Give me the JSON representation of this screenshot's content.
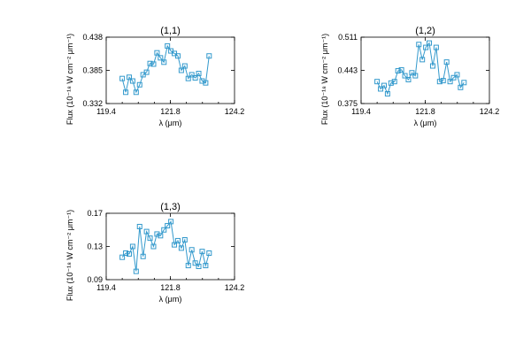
{
  "chart_data": [
    {
      "type": "line",
      "title": "(1,1)",
      "xlabel": "λ (μm)",
      "ylabel": "Flux (10⁻¹⁸ W cm⁻² μm⁻¹)",
      "xlim": [
        119.4,
        124.2
      ],
      "ylim": [
        0.332,
        0.438
      ],
      "xticks": [
        "119.4",
        "121.8",
        "124.2"
      ],
      "yticks": [
        "0.332",
        "0.385",
        "0.438"
      ],
      "color": "#3399cc",
      "x": [
        120.0,
        120.13,
        120.26,
        120.39,
        120.52,
        120.65,
        120.78,
        120.91,
        121.04,
        121.17,
        121.3,
        121.43,
        121.56,
        121.69,
        121.82,
        121.95,
        122.08,
        122.21,
        122.34,
        122.47,
        122.6,
        122.73,
        122.86,
        122.99,
        123.12,
        123.25
      ],
      "y": [
        0.372,
        0.35,
        0.374,
        0.368,
        0.35,
        0.362,
        0.378,
        0.382,
        0.396,
        0.395,
        0.413,
        0.405,
        0.398,
        0.424,
        0.416,
        0.412,
        0.408,
        0.385,
        0.392,
        0.372,
        0.378,
        0.373,
        0.38,
        0.368,
        0.365,
        0.408
      ]
    },
    {
      "type": "line",
      "title": "(1,2)",
      "xlabel": "λ (μm)",
      "ylabel": "Flux (10⁻¹⁸ W cm⁻² μm⁻¹)",
      "xlim": [
        119.4,
        124.2
      ],
      "ylim": [
        0.375,
        0.511
      ],
      "xticks": [
        "119.4",
        "121.8",
        "124.2"
      ],
      "yticks": [
        "0.375",
        "0.443",
        "0.511"
      ],
      "color": "#3399cc",
      "x": [
        120.0,
        120.13,
        120.26,
        120.39,
        120.52,
        120.65,
        120.78,
        120.91,
        121.04,
        121.17,
        121.3,
        121.43,
        121.56,
        121.69,
        121.82,
        121.95,
        122.08,
        122.21,
        122.34,
        122.47,
        122.6,
        122.73,
        122.86,
        122.99,
        123.12,
        123.25
      ],
      "y": [
        0.42,
        0.405,
        0.412,
        0.395,
        0.417,
        0.42,
        0.442,
        0.444,
        0.432,
        0.424,
        0.438,
        0.432,
        0.496,
        0.465,
        0.49,
        0.499,
        0.452,
        0.49,
        0.42,
        0.422,
        0.46,
        0.42,
        0.428,
        0.434,
        0.408,
        0.418
      ]
    },
    {
      "type": "line",
      "title": "(1,3)",
      "xlabel": "λ (μm)",
      "ylabel": "Flux (10⁻¹⁸ W cm⁻² μm⁻¹)",
      "xlim": [
        119.4,
        124.2
      ],
      "ylim": [
        0.09,
        0.17
      ],
      "xticks": [
        "119.4",
        "121.8",
        "124.2"
      ],
      "yticks": [
        "0.09",
        "0.13",
        "0.17"
      ],
      "color": "#3399cc",
      "x": [
        120.0,
        120.13,
        120.26,
        120.39,
        120.52,
        120.65,
        120.78,
        120.91,
        121.04,
        121.17,
        121.3,
        121.43,
        121.56,
        121.69,
        121.82,
        121.95,
        122.08,
        122.21,
        122.34,
        122.47,
        122.6,
        122.73,
        122.86,
        122.99,
        123.12,
        123.25
      ],
      "y": [
        0.117,
        0.122,
        0.121,
        0.13,
        0.1,
        0.154,
        0.118,
        0.148,
        0.14,
        0.13,
        0.145,
        0.143,
        0.15,
        0.155,
        0.16,
        0.132,
        0.137,
        0.128,
        0.138,
        0.107,
        0.126,
        0.11,
        0.106,
        0.124,
        0.107,
        0.122
      ]
    }
  ]
}
